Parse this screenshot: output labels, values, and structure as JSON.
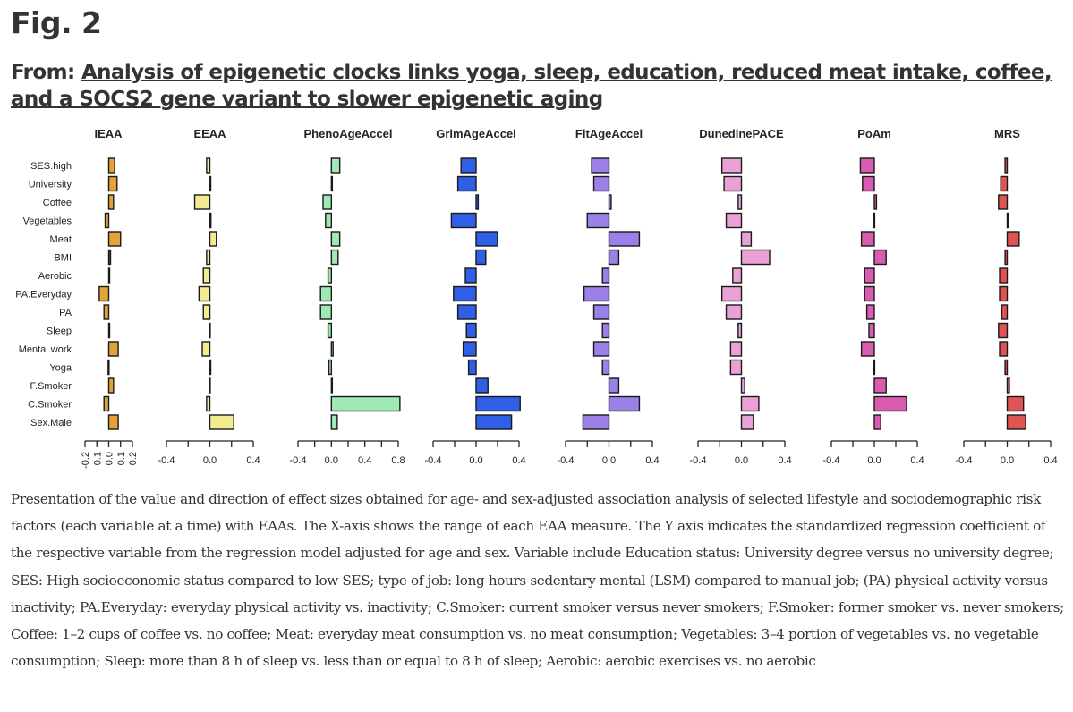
{
  "header": {
    "fig_label": "Fig. 2",
    "from_prefix": "From: ",
    "article_title": "Analysis of epigenetic clocks links yoga, sleep, education, reduced meat intake, coffee, and a SOCS2 gene variant to slower epigenetic aging"
  },
  "caption": "Presentation of the value and direction of effect sizes obtained for age- and sex-adjusted association analysis of selected lifestyle and sociodemographic risk factors (each variable at a time) with EAAs. The X-axis shows the range of each EAA measure. The Y axis indicates the standardized regression coefficient of the respective variable from the regression model adjusted for age and sex. Variable include Education status: University degree versus no university degree; SES: High socioeconomic status compared to low SES; type of job: long hours sedentary mental (LSM) compared to manual job; (PA) physical activity versus inactivity; PA.Everyday: everyday physical activity vs. inactivity; C.Smoker: current smoker versus never smokers; F.Smoker: former smoker vs. never smokers; Coffee: 1–2 cups of coffee vs. no coffee; Meat: everyday meat consumption vs. no meat consumption; Vegetables: 3–4 portion of vegetables vs. no vegetable consumption; Sleep: more than 8 h of sleep vs. less than or equal to 8 h of sleep; Aerobic: aerobic exercises vs. no aerobic",
  "chart_data": {
    "type": "bar",
    "orientation": "horizontal",
    "title": "",
    "xlabel": "",
    "ylabel": "",
    "grid": false,
    "legend": "none",
    "categories": [
      "SES.high",
      "University",
      "Coffee",
      "Vegetables",
      "Meat",
      "BMI",
      "Aerobic",
      "PA.Everyday",
      "PA",
      "Sleep",
      "Mental.work",
      "Yoga",
      "F.Smoker",
      "C.Smoker",
      "Sex.Male"
    ],
    "panels": [
      {
        "name": "IEAA",
        "color": "#e5a23a",
        "xlim": [
          -0.2,
          0.2
        ],
        "ticks": [
          -0.2,
          -0.1,
          0.0,
          0.1,
          0.2
        ],
        "tick_labels": [
          "-0.2",
          "-0.1",
          "0.0",
          "0.1",
          "0.2"
        ],
        "rotated_ticks": true,
        "values": [
          0.05,
          0.07,
          0.04,
          -0.03,
          0.1,
          0.015,
          0.0,
          -0.08,
          -0.04,
          0.005,
          0.08,
          -0.005,
          0.04,
          -0.04,
          0.08
        ]
      },
      {
        "name": "EEAA",
        "color": "#f3eb8f",
        "xlim": [
          -0.4,
          0.4
        ],
        "ticks": [
          -0.4,
          -0.2,
          0.0,
          0.2,
          0.4
        ],
        "tick_labels": [
          "-0.4",
          "",
          "0.0",
          "",
          "0.4"
        ],
        "rotated_ticks": false,
        "values": [
          -0.03,
          0.0,
          -0.14,
          0.01,
          0.06,
          -0.03,
          -0.06,
          -0.1,
          -0.06,
          -0.005,
          -0.07,
          0.0,
          -0.005,
          -0.03,
          0.22
        ]
      },
      {
        "name": "PhenoAgeAccel",
        "color": "#9eeab2",
        "xlim": [
          -0.4,
          0.8
        ],
        "ticks": [
          -0.4,
          -0.2,
          0.0,
          0.2,
          0.4,
          0.6,
          0.8
        ],
        "tick_labels": [
          "-0.4",
          "",
          "0.0",
          "",
          "0.4",
          "",
          "0.8"
        ],
        "rotated_ticks": false,
        "values": [
          0.1,
          0.0,
          -0.1,
          -0.07,
          0.1,
          0.08,
          -0.04,
          -0.13,
          -0.13,
          -0.04,
          0.02,
          -0.03,
          0.005,
          0.82,
          0.07
        ]
      },
      {
        "name": "GrimAgeAccel",
        "color": "#2e5fe6",
        "xlim": [
          -0.4,
          0.4
        ],
        "ticks": [
          -0.4,
          -0.2,
          0.0,
          0.2,
          0.4
        ],
        "tick_labels": [
          "-0.4",
          "",
          "0.0",
          "",
          "0.4"
        ],
        "rotated_ticks": false,
        "values": [
          -0.14,
          -0.17,
          0.02,
          -0.23,
          0.2,
          0.09,
          -0.1,
          -0.21,
          -0.17,
          -0.09,
          -0.12,
          -0.07,
          0.11,
          0.41,
          0.33
        ]
      },
      {
        "name": "FitAgeAccel",
        "color": "#9b80e8",
        "xlim": [
          -0.4,
          0.4
        ],
        "ticks": [
          -0.4,
          -0.2,
          0.0,
          0.2,
          0.4
        ],
        "tick_labels": [
          "-0.4",
          "",
          "0.0",
          "",
          "0.4"
        ],
        "rotated_ticks": false,
        "values": [
          -0.16,
          -0.14,
          0.02,
          -0.2,
          0.28,
          0.09,
          -0.06,
          -0.23,
          -0.14,
          -0.06,
          -0.14,
          -0.06,
          0.09,
          0.28,
          -0.24
        ]
      },
      {
        "name": "DunedinePACE",
        "color": "#eaa1d6",
        "xlim": [
          -0.4,
          0.4
        ],
        "ticks": [
          -0.4,
          -0.2,
          0.0,
          0.2,
          0.4
        ],
        "tick_labels": [
          "-0.4",
          "",
          "0.0",
          "",
          "0.4"
        ],
        "rotated_ticks": false,
        "values": [
          -0.18,
          -0.16,
          -0.03,
          -0.14,
          0.09,
          0.26,
          -0.08,
          -0.18,
          -0.14,
          -0.03,
          -0.1,
          -0.1,
          0.03,
          0.16,
          0.11
        ]
      },
      {
        "name": "PoAm",
        "color": "#d95bb2",
        "xlim": [
          -0.4,
          0.4
        ],
        "ticks": [
          -0.4,
          -0.2,
          0.0,
          0.2,
          0.4
        ],
        "tick_labels": [
          "-0.4",
          "",
          "0.0",
          "",
          "0.4"
        ],
        "rotated_ticks": false,
        "values": [
          -0.13,
          -0.11,
          0.02,
          -0.005,
          -0.12,
          0.11,
          -0.09,
          -0.09,
          -0.07,
          -0.05,
          -0.12,
          -0.005,
          0.11,
          0.3,
          0.06
        ]
      },
      {
        "name": "MRS",
        "color": "#e05454",
        "xlim": [
          -0.4,
          0.4
        ],
        "ticks": [
          -0.4,
          -0.2,
          0.0,
          0.2,
          0.4
        ],
        "tick_labels": [
          "-0.4",
          "",
          "0.0",
          "",
          "0.4"
        ],
        "rotated_ticks": false,
        "values": [
          -0.02,
          -0.06,
          -0.08,
          0.0,
          0.11,
          -0.02,
          -0.07,
          -0.07,
          -0.05,
          -0.08,
          -0.07,
          -0.02,
          0.02,
          0.15,
          0.17
        ]
      }
    ]
  }
}
